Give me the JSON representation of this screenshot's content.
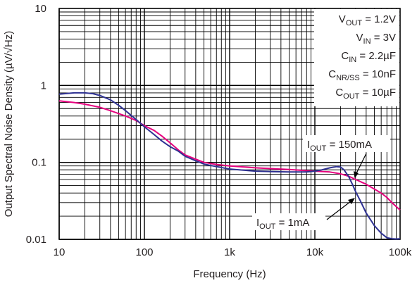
{
  "chart_data": {
    "type": "line",
    "xlabel": "Frequency (Hz)",
    "ylabel": "Output Spectral Noise Density (µV/√Hz)",
    "x_scale": "log",
    "y_scale": "log",
    "xlim": [
      10,
      100000
    ],
    "ylim": [
      0.01,
      10
    ],
    "grid": true,
    "x_ticks": [
      {
        "value": 10,
        "label": "10"
      },
      {
        "value": 100,
        "label": "100"
      },
      {
        "value": 1000,
        "label": "1k"
      },
      {
        "value": 10000,
        "label": "10k"
      },
      {
        "value": 100000,
        "label": "100k"
      }
    ],
    "y_ticks": [
      {
        "value": 10,
        "label": "10"
      },
      {
        "value": 1,
        "label": "1"
      },
      {
        "value": 0.1,
        "label": "0.1"
      },
      {
        "value": 0.01,
        "label": "0.01"
      }
    ],
    "conditions": [
      {
        "main": "V",
        "sub": "OUT",
        "rest": " = 1.2V"
      },
      {
        "main": "V",
        "sub": "IN",
        "rest": " = 3V"
      },
      {
        "main": "C",
        "sub": "IN",
        "rest": " = 2.2µF"
      },
      {
        "main": "C",
        "sub": "NR/SS",
        "rest": " = 10nF"
      },
      {
        "main": "C",
        "sub": "OUT",
        "rest": " = 10µF"
      }
    ],
    "series": [
      {
        "label": {
          "main": "I",
          "sub": "OUT",
          "rest": " = 150mA"
        },
        "color": "#e6007e",
        "x": [
          10,
          15,
          20,
          30,
          40,
          60,
          80,
          100,
          130,
          160,
          200,
          250,
          300,
          400,
          500,
          700,
          1000,
          1500,
          2000,
          3000,
          5000,
          8000,
          10000,
          15000,
          20000,
          25000,
          30000,
          40000,
          50000,
          60000,
          70000,
          80000,
          100000
        ],
        "y": [
          0.63,
          0.6,
          0.57,
          0.52,
          0.47,
          0.4,
          0.35,
          0.3,
          0.26,
          0.22,
          0.18,
          0.145,
          0.125,
          0.11,
          0.1,
          0.094,
          0.09,
          0.087,
          0.085,
          0.083,
          0.081,
          0.078,
          0.077,
          0.075,
          0.071,
          0.066,
          0.06,
          0.052,
          0.045,
          0.04,
          0.035,
          0.03,
          0.024
        ]
      },
      {
        "label": {
          "main": "I",
          "sub": "OUT",
          "rest": " = 1mA"
        },
        "color": "#2e3192",
        "x": [
          10,
          15,
          20,
          25,
          30,
          40,
          50,
          60,
          80,
          100,
          130,
          160,
          200,
          250,
          300,
          400,
          500,
          700,
          1000,
          1500,
          2000,
          3000,
          5000,
          8000,
          10000,
          12000,
          15000,
          18000,
          20000,
          22000,
          25000,
          28000,
          30000,
          35000,
          40000,
          50000,
          60000,
          70000,
          80000,
          90000,
          100000
        ],
        "y": [
          0.77,
          0.8,
          0.8,
          0.78,
          0.74,
          0.65,
          0.55,
          0.47,
          0.36,
          0.29,
          0.23,
          0.19,
          0.16,
          0.14,
          0.12,
          0.105,
          0.095,
          0.088,
          0.082,
          0.079,
          0.077,
          0.076,
          0.075,
          0.075,
          0.077,
          0.08,
          0.085,
          0.088,
          0.087,
          0.08,
          0.065,
          0.05,
          0.042,
          0.03,
          0.022,
          0.015,
          0.012,
          0.0105,
          0.0102,
          0.0101,
          0.0102
        ]
      }
    ]
  }
}
